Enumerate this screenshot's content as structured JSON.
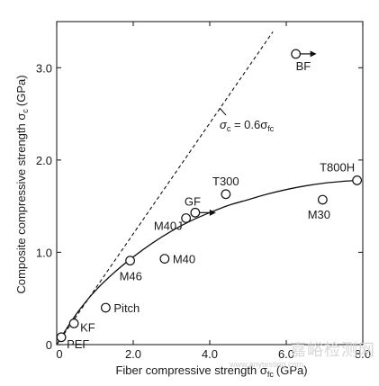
{
  "chart_data": {
    "type": "scatter",
    "xlabel": "Fiber compressive strength σ",
    "xlabel_sub": "fc",
    "xlabel_unit": "(GPa)",
    "ylabel": "Composite compressive strength σ",
    "ylabel_sub": "c",
    "ylabel_unit": "(GPa)",
    "xlim": [
      0,
      8.0
    ],
    "ylim": [
      0,
      3.5
    ],
    "xticks": [
      0,
      2.0,
      4.0,
      6.0,
      8.0
    ],
    "xtick_labels": [
      "0",
      "2.0",
      "4.0",
      "6.0",
      "8.0"
    ],
    "yticks": [
      0,
      1.0,
      2.0,
      3.0
    ],
    "ytick_labels": [
      "0",
      "1.0",
      "2.0",
      "3.0"
    ],
    "grid": false,
    "points": [
      {
        "label": "PEF",
        "x": 0.12,
        "y": 0.08
      },
      {
        "label": "KF",
        "x": 0.45,
        "y": 0.23
      },
      {
        "label": "Pitch",
        "x": 1.28,
        "y": 0.4
      },
      {
        "label": "M46",
        "x": 1.92,
        "y": 0.91
      },
      {
        "label": "M40",
        "x": 2.82,
        "y": 0.93
      },
      {
        "label": "M40J",
        "x": 3.38,
        "y": 1.37
      },
      {
        "label": "GF",
        "x": 3.62,
        "y": 1.43,
        "arrow": true
      },
      {
        "label": "T300",
        "x": 4.42,
        "y": 1.63
      },
      {
        "label": "M30",
        "x": 6.95,
        "y": 1.57
      },
      {
        "label": "T800H",
        "x": 7.85,
        "y": 1.78
      },
      {
        "label": "BF",
        "x": 6.25,
        "y": 3.15,
        "arrow": true
      }
    ],
    "fit_curve": {
      "x": [
        0,
        0.3,
        0.6,
        1.0,
        1.5,
        2.0,
        2.5,
        3.0,
        3.5,
        4.0,
        4.5,
        5.0,
        5.5,
        6.0,
        6.5,
        7.0,
        7.5,
        7.85
      ],
      "y": [
        0,
        0.2,
        0.38,
        0.58,
        0.78,
        0.95,
        1.1,
        1.23,
        1.34,
        1.43,
        1.51,
        1.57,
        1.63,
        1.68,
        1.72,
        1.75,
        1.77,
        1.78
      ]
    },
    "reference_line": {
      "label": "σ",
      "label_sub1": "c",
      "label_mid": " = 0.6σ",
      "label_sub2": "fc",
      "slope": 0.6,
      "x": [
        0,
        5.65
      ],
      "y": [
        0,
        3.39
      ]
    }
  },
  "watermark": {
    "text": "嘉峪检测网",
    "subtext": "www.anytesting.com"
  }
}
